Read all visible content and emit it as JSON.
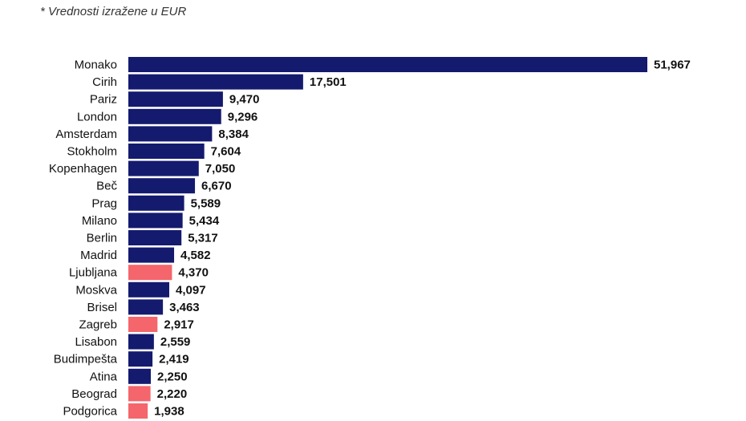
{
  "note": "* Vrednosti izražene u EUR",
  "colors": {
    "default": "#141a6e",
    "highlight": "#f4666c"
  },
  "chart_data": {
    "type": "bar",
    "orientation": "horizontal",
    "categories": [
      "Monako",
      "Cirih",
      "Pariz",
      "London",
      "Amsterdam",
      "Stokholm",
      "Kopenhagen",
      "Beč",
      "Prag",
      "Milano",
      "Berlin",
      "Madrid",
      "Ljubljana",
      "Moskva",
      "Brisel",
      "Zagreb",
      "Lisabon",
      "Budimpešta",
      "Atina",
      "Beograd",
      "Podgorica"
    ],
    "values": [
      51967,
      17501,
      9470,
      9296,
      8384,
      7604,
      7050,
      6670,
      5589,
      5434,
      5317,
      4582,
      4370,
      4097,
      3463,
      2917,
      2559,
      2419,
      2250,
      2220,
      1938
    ],
    "value_labels": [
      "51,967",
      "17,501",
      "9,470",
      "9,296",
      "8,384",
      "7,604",
      "7,050",
      "6,670",
      "5,589",
      "5,434",
      "5,317",
      "4,582",
      "4,370",
      "4,097",
      "3,463",
      "2,917",
      "2,559",
      "2,419",
      "2,250",
      "2,220",
      "1,938"
    ],
    "highlighted": [
      "Ljubljana",
      "Zagreb",
      "Beograd",
      "Podgorica"
    ],
    "title": "",
    "xlabel": "",
    "ylabel": "",
    "grid": false,
    "legend": "none"
  }
}
